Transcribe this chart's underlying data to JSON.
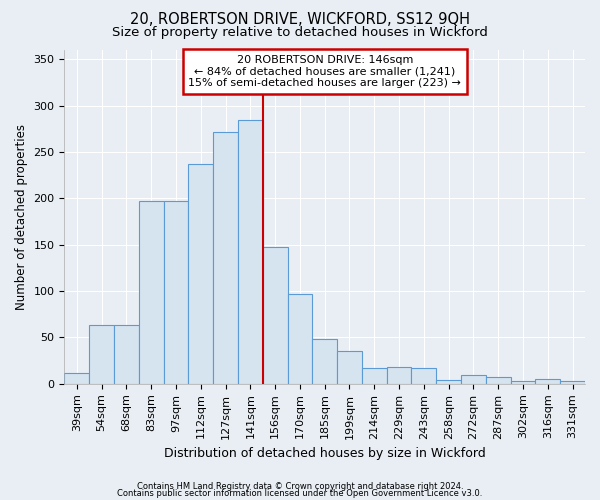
{
  "title": "20, ROBERTSON DRIVE, WICKFORD, SS12 9QH",
  "subtitle": "Size of property relative to detached houses in Wickford",
  "xlabel": "Distribution of detached houses by size in Wickford",
  "ylabel": "Number of detached properties",
  "categories": [
    "39sqm",
    "54sqm",
    "68sqm",
    "83sqm",
    "97sqm",
    "112sqm",
    "127sqm",
    "141sqm",
    "156sqm",
    "170sqm",
    "185sqm",
    "199sqm",
    "214sqm",
    "229sqm",
    "243sqm",
    "258sqm",
    "272sqm",
    "287sqm",
    "302sqm",
    "316sqm",
    "331sqm"
  ],
  "values": [
    12,
    63,
    63,
    197,
    197,
    237,
    272,
    285,
    148,
    97,
    48,
    35,
    17,
    18,
    17,
    4,
    9,
    7,
    3,
    5,
    3
  ],
  "bar_color": "#d6e4f0",
  "bar_edge_color": "#5b9bd5",
  "vline_index": 7,
  "annotation_title": "20 ROBERTSON DRIVE: 146sqm",
  "annotation_line1": "← 84% of detached houses are smaller (1,241)",
  "annotation_line2": "15% of semi-detached houses are larger (223) →",
  "annotation_box_color": "#ffffff",
  "annotation_box_edge_color": "#cc0000",
  "vline_color": "#cc0000",
  "footer1": "Contains HM Land Registry data © Crown copyright and database right 2024.",
  "footer2": "Contains public sector information licensed under the Open Government Licence v3.0.",
  "ylim": [
    0,
    360
  ],
  "yticks": [
    0,
    50,
    100,
    150,
    200,
    250,
    300,
    350
  ],
  "background_color": "#e8eef4",
  "grid_color": "#ffffff",
  "title_fontsize": 10.5,
  "subtitle_fontsize": 9.5,
  "xlabel_fontsize": 9,
  "ylabel_fontsize": 8.5,
  "tick_fontsize": 8,
  "ann_fontsize": 8
}
